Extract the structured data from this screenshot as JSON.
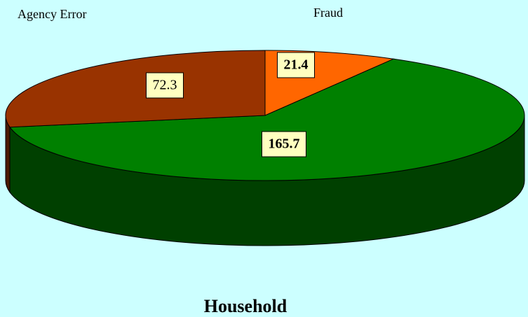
{
  "chart_data": {
    "type": "pie3d",
    "categories": [
      "Fraud",
      "Household",
      "Agency Error"
    ],
    "values": [
      21.4,
      165.7,
      72.3
    ],
    "colors": [
      "#ff6600",
      "#008000",
      "#993300"
    ]
  }
}
